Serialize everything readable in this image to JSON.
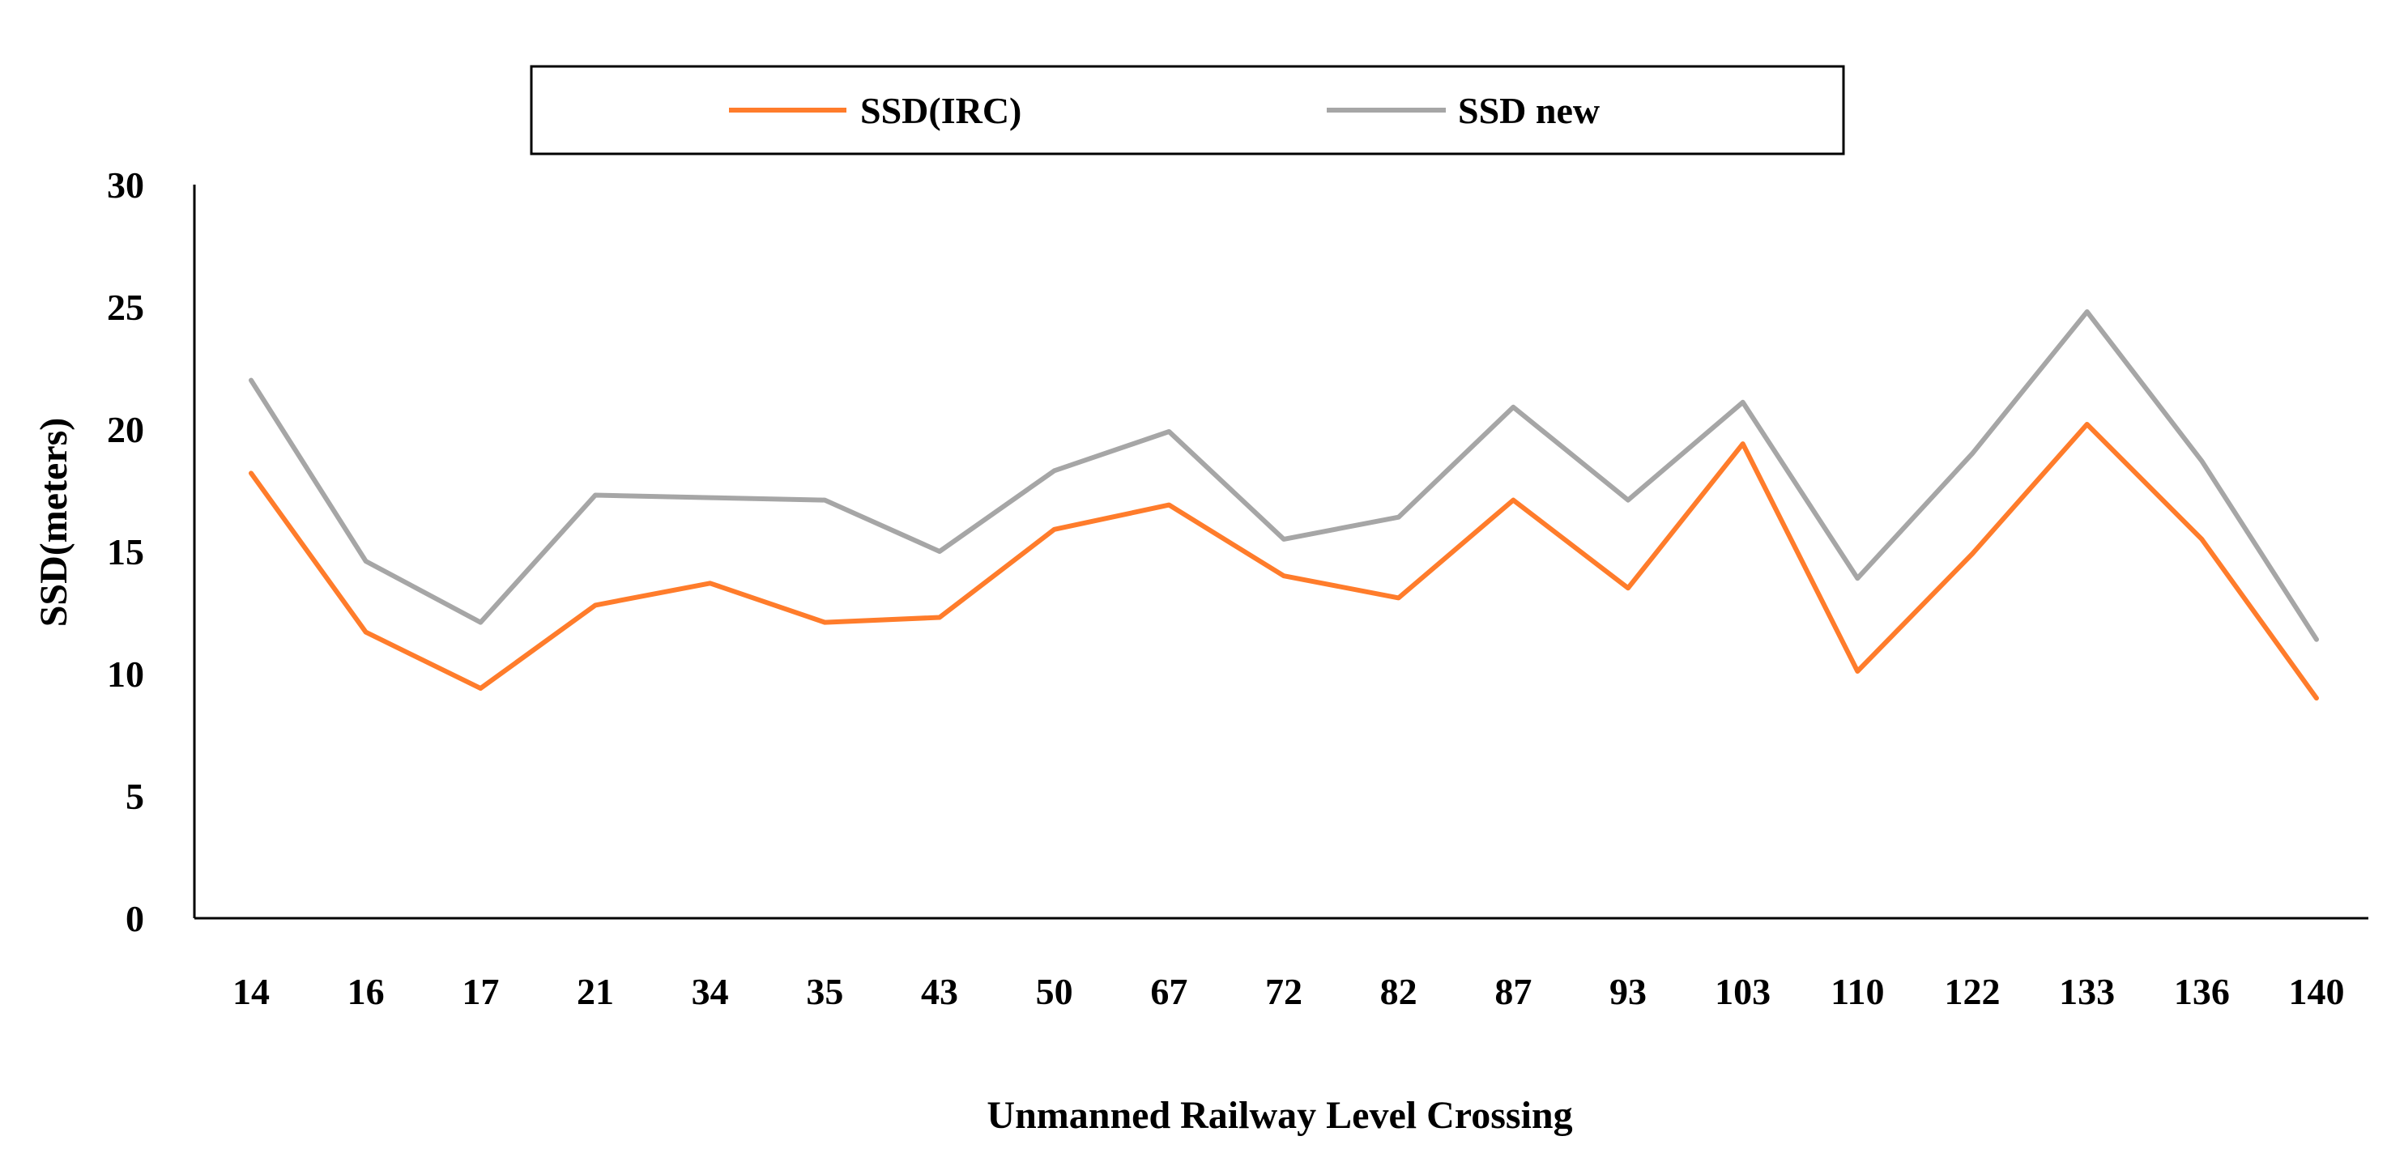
{
  "chart_data": {
    "type": "line",
    "categories": [
      "14",
      "16",
      "17",
      "21",
      "34",
      "35",
      "43",
      "50",
      "67",
      "72",
      "82",
      "87",
      "93",
      "103",
      "110",
      "122",
      "133",
      "136",
      "140"
    ],
    "series": [
      {
        "name": "SSD(IRC)",
        "color": "#ff7c2b",
        "values": [
          18.2,
          11.7,
          9.4,
          12.8,
          13.7,
          12.1,
          12.3,
          15.9,
          16.9,
          14.0,
          13.1,
          17.1,
          13.5,
          19.4,
          10.1,
          14.9,
          20.2,
          15.5,
          9.0
        ]
      },
      {
        "name": "SSD new",
        "color": "#a6a6a6",
        "values": [
          22.0,
          14.6,
          12.1,
          17.3,
          17.2,
          17.1,
          15.0,
          18.3,
          19.9,
          15.5,
          16.4,
          20.9,
          17.1,
          21.1,
          13.9,
          19.0,
          24.8,
          18.7,
          11.4
        ]
      }
    ],
    "yticks": [
      "0",
      "5",
      "10",
      "15",
      "20",
      "25",
      "30"
    ],
    "ylim": [
      0,
      30
    ],
    "xlabel": "Unmanned Railway Level Crossing",
    "ylabel": "SSD(meters)",
    "grid": false,
    "legend_position": "top"
  }
}
